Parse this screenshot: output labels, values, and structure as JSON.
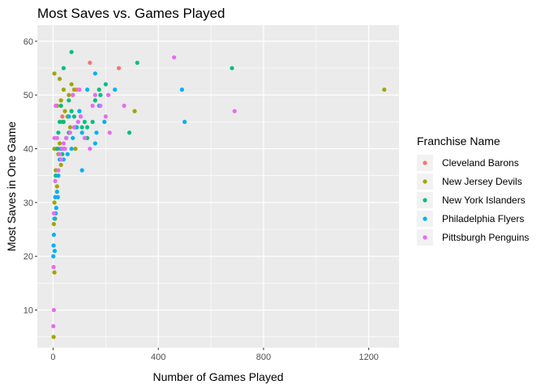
{
  "chart_data": {
    "type": "scatter",
    "title": "Most Saves vs. Games Played",
    "xlabel": "Number of Games Played",
    "ylabel": "Most Saves in One Game",
    "xlim": [
      -60,
      1315
    ],
    "ylim": [
      3,
      63
    ],
    "x_ticks": [
      0,
      400,
      800,
      1200
    ],
    "y_ticks": [
      10,
      20,
      30,
      40,
      50,
      60
    ],
    "grid": true,
    "legend_position": "right",
    "legend_title": "Franchise Name",
    "series": [
      {
        "name": "Cleveland Barons",
        "color": "#F8766D",
        "points": [
          [
            140,
            56
          ],
          [
            250,
            55
          ],
          [
            90,
            51
          ],
          [
            75,
            50
          ],
          [
            60,
            43
          ],
          [
            20,
            40
          ],
          [
            35,
            46
          ]
        ]
      },
      {
        "name": "New Jersey Devils",
        "color": "#A3A500",
        "points": [
          [
            1259,
            51
          ],
          [
            310,
            47
          ],
          [
            5,
            54
          ],
          [
            25,
            53
          ],
          [
            40,
            51
          ],
          [
            70,
            52
          ],
          [
            80,
            51
          ],
          [
            60,
            50
          ],
          [
            15,
            48
          ],
          [
            30,
            49
          ],
          [
            55,
            46
          ],
          [
            45,
            47
          ],
          [
            35,
            45
          ],
          [
            65,
            44
          ],
          [
            25,
            41
          ],
          [
            40,
            40
          ],
          [
            85,
            40
          ],
          [
            5,
            40
          ],
          [
            10,
            36
          ],
          [
            30,
            37
          ],
          [
            15,
            33
          ],
          [
            5,
            30
          ],
          [
            8,
            27
          ],
          [
            3,
            26
          ],
          [
            5,
            17
          ],
          [
            2,
            5
          ],
          [
            20,
            39
          ]
        ]
      },
      {
        "name": "New York Islanders",
        "color": "#00BF7D",
        "points": [
          [
            70,
            58
          ],
          [
            320,
            56
          ],
          [
            680,
            55
          ],
          [
            40,
            55
          ],
          [
            30,
            48
          ],
          [
            100,
            47
          ],
          [
            80,
            46
          ],
          [
            120,
            45
          ],
          [
            150,
            45
          ],
          [
            180,
            50
          ],
          [
            200,
            52
          ],
          [
            175,
            51
          ],
          [
            290,
            43
          ],
          [
            130,
            42
          ],
          [
            110,
            44
          ],
          [
            90,
            44
          ],
          [
            60,
            43
          ],
          [
            50,
            42
          ],
          [
            20,
            43
          ],
          [
            45,
            40
          ],
          [
            25,
            45
          ],
          [
            15,
            40
          ],
          [
            35,
            39
          ],
          [
            70,
            47
          ],
          [
            130,
            44
          ],
          [
            10,
            35
          ],
          [
            60,
            49
          ],
          [
            160,
            49
          ],
          [
            40,
            45
          ]
        ]
      },
      {
        "name": "Philadelphia Flyers",
        "color": "#00B0F6",
        "points": [
          [
            490,
            51
          ],
          [
            500,
            45
          ],
          [
            160,
            54
          ],
          [
            235,
            51
          ],
          [
            130,
            51
          ],
          [
            175,
            48
          ],
          [
            100,
            47
          ],
          [
            85,
            44
          ],
          [
            75,
            42
          ],
          [
            110,
            43
          ],
          [
            70,
            40
          ],
          [
            55,
            39
          ],
          [
            40,
            38
          ],
          [
            30,
            40
          ],
          [
            25,
            38
          ],
          [
            60,
            46
          ],
          [
            110,
            36
          ],
          [
            165,
            43
          ],
          [
            160,
            41
          ],
          [
            195,
            45
          ],
          [
            20,
            35
          ],
          [
            15,
            32
          ],
          [
            8,
            31
          ],
          [
            12,
            29
          ],
          [
            5,
            27
          ],
          [
            3,
            24
          ],
          [
            2,
            22
          ],
          [
            1,
            20
          ],
          [
            6,
            21
          ],
          [
            18,
            31
          ],
          [
            10,
            28
          ]
        ]
      },
      {
        "name": "Pittsburgh Penguins",
        "color": "#E76BF3",
        "points": [
          [
            460,
            57
          ],
          [
            690,
            47
          ],
          [
            180,
            48
          ],
          [
            210,
            50
          ],
          [
            150,
            48
          ],
          [
            200,
            46
          ],
          [
            215,
            43
          ],
          [
            120,
            42
          ],
          [
            95,
            45
          ],
          [
            80,
            44
          ],
          [
            65,
            43
          ],
          [
            50,
            42
          ],
          [
            45,
            40
          ],
          [
            35,
            40
          ],
          [
            25,
            39
          ],
          [
            30,
            38
          ],
          [
            20,
            36
          ],
          [
            15,
            42
          ],
          [
            5,
            42
          ],
          [
            10,
            48
          ],
          [
            160,
            50
          ],
          [
            75,
            50
          ],
          [
            100,
            51
          ],
          [
            140,
            40
          ],
          [
            105,
            46
          ],
          [
            270,
            48
          ],
          [
            8,
            34
          ],
          [
            3,
            28
          ],
          [
            2,
            18
          ],
          [
            3,
            10
          ],
          [
            1,
            7
          ],
          [
            40,
            41
          ]
        ]
      }
    ]
  }
}
